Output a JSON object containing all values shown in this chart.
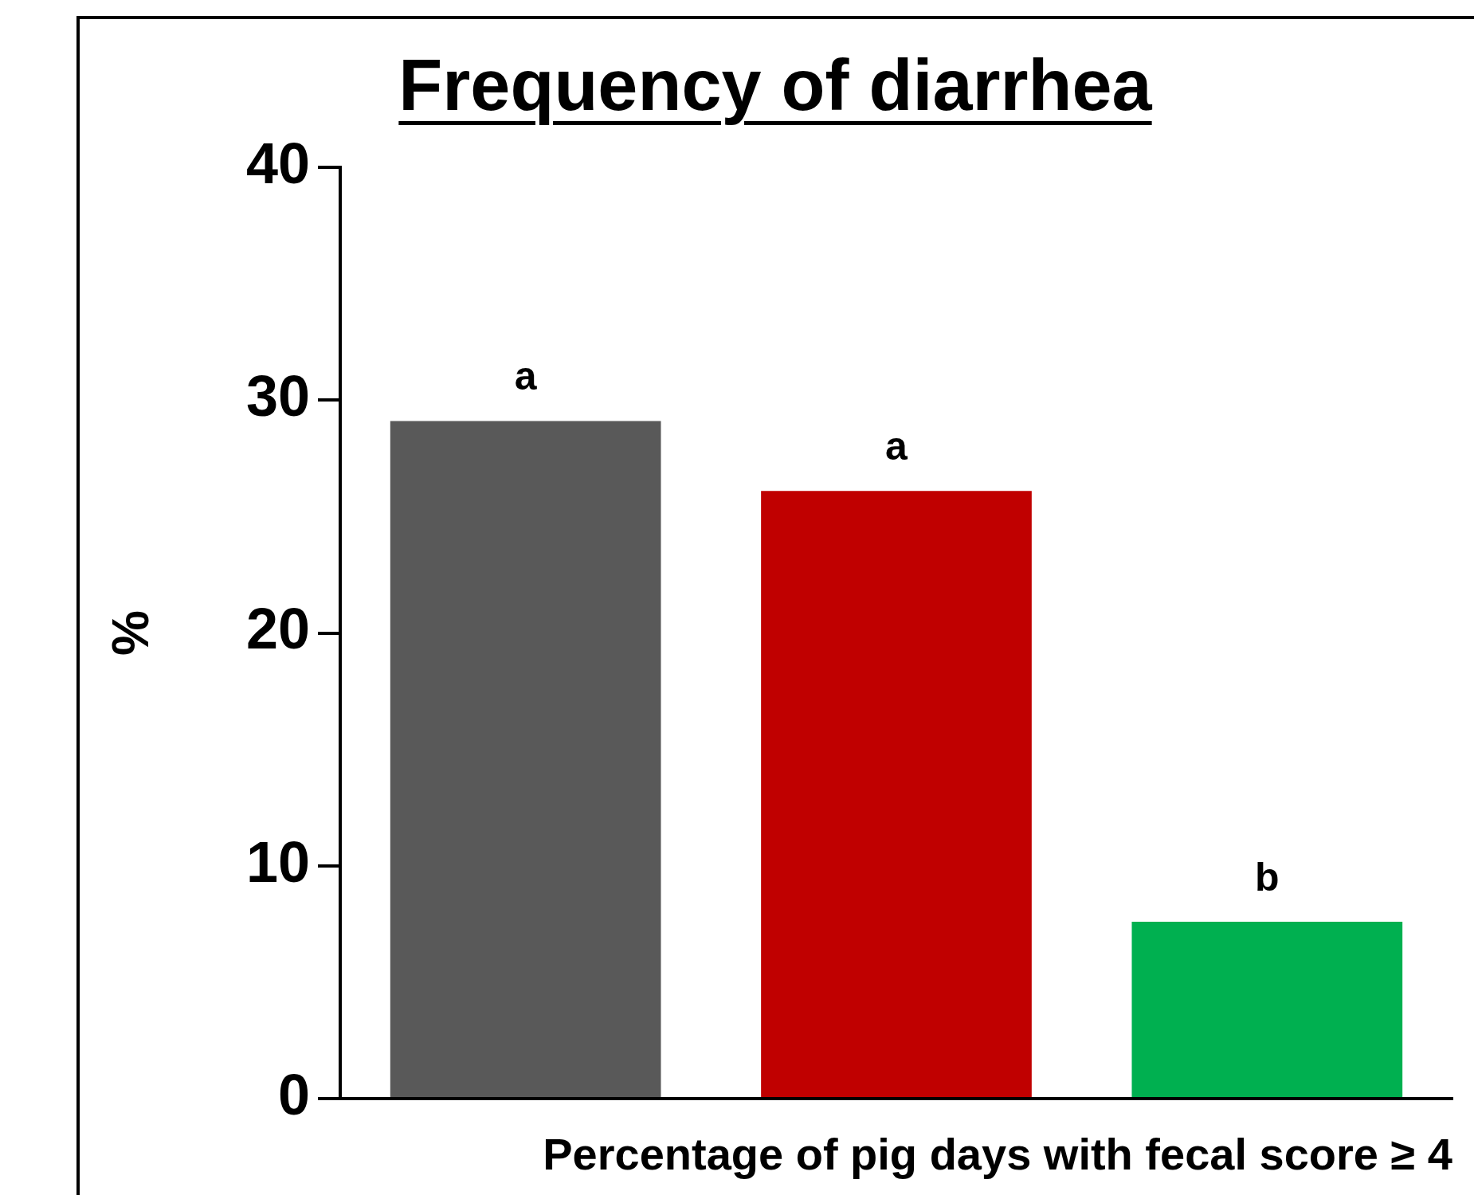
{
  "chart_data": {
    "type": "bar",
    "title": "Frequency of diarrhea",
    "xlabel": "Percentage of pig days with fecal score ≥ 4",
    "ylabel": "%",
    "categories": [
      null,
      null,
      null
    ],
    "values": [
      29.1,
      26.1,
      7.6
    ],
    "colors": [
      "#595959",
      "#c00000",
      "#00b050"
    ],
    "value_labels": [
      "a",
      "a",
      "b"
    ],
    "ylim": [
      0,
      40
    ],
    "yticks": [
      0,
      10,
      20,
      30,
      40
    ]
  }
}
